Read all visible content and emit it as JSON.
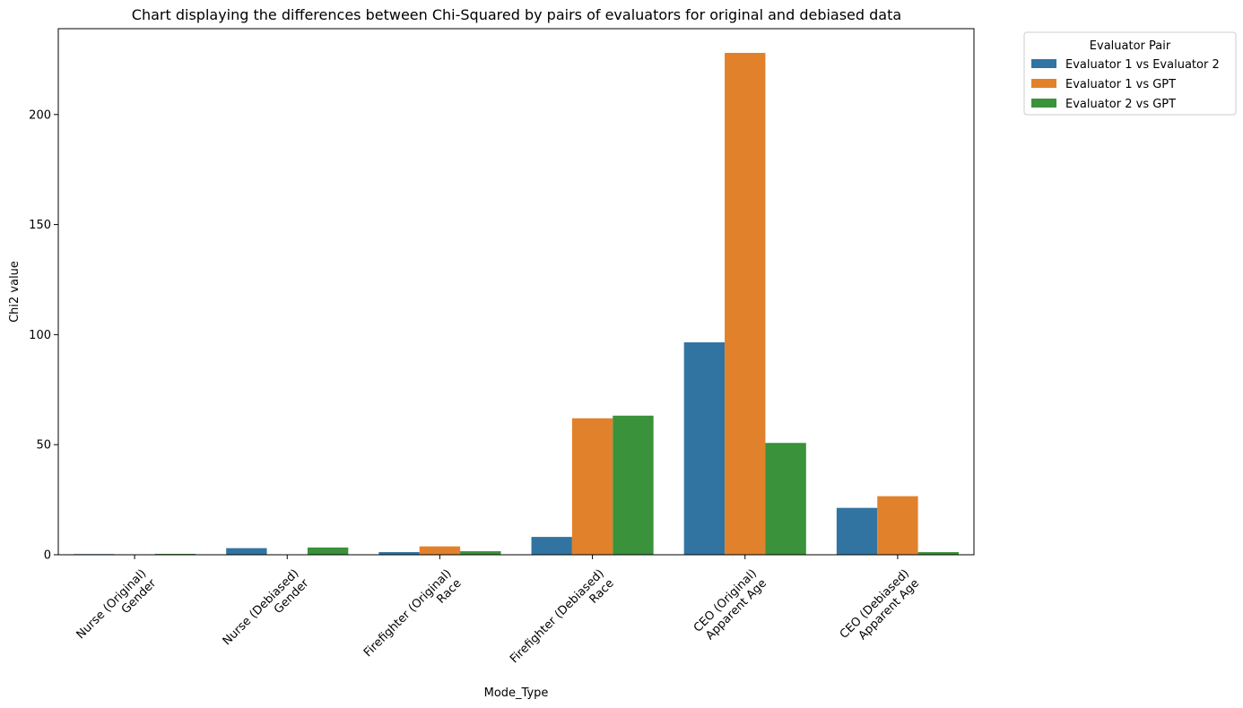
{
  "chart_data": {
    "type": "bar",
    "title": "Chart displaying the differences between Chi-Squared by pairs of evaluators for original and debiased data",
    "xlabel": "Mode_Type",
    "ylabel": "Chi2 value",
    "ylim": [
      0,
      239
    ],
    "yticks": [
      0,
      50,
      100,
      150,
      200
    ],
    "grid": false,
    "legend": {
      "title": "Evaluator Pair",
      "placement": "outside-top-right"
    },
    "categories": [
      [
        "Nurse (Original)",
        "Gender"
      ],
      [
        "Nurse (Debiased)",
        "Gender"
      ],
      [
        "Firefighter (Original)",
        "Race"
      ],
      [
        "Firefighter (Debiased)",
        "Race"
      ],
      [
        "CEO (Original)",
        "Apparent Age"
      ],
      [
        "CEO (Debiased)",
        "Apparent Age"
      ]
    ],
    "series": [
      {
        "name": "Evaluator 1 vs Evaluator 2",
        "color": "#3274a1",
        "values": [
          0.3,
          3.0,
          1.2,
          8.1,
          96.5,
          21.3
        ]
      },
      {
        "name": "Evaluator 1 vs GPT",
        "color": "#e1812c",
        "values": [
          0.0,
          0.0,
          3.8,
          62.0,
          228.0,
          26.6
        ]
      },
      {
        "name": "Evaluator 2 vs GPT",
        "color": "#3a923a",
        "values": [
          0.4,
          3.3,
          1.6,
          63.2,
          50.8,
          1.2
        ]
      }
    ]
  }
}
